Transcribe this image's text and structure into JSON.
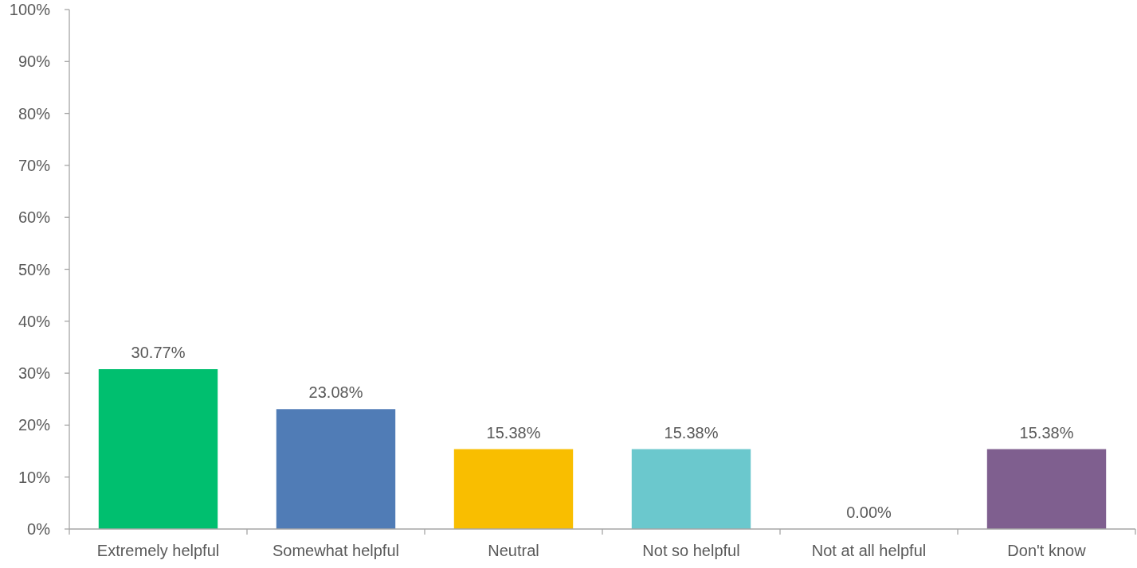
{
  "chart_data": {
    "type": "bar",
    "categories": [
      "Extremely helpful",
      "Somewhat helpful",
      "Neutral",
      "Not so helpful",
      "Not at all helpful",
      "Don't know"
    ],
    "values": [
      30.77,
      23.08,
      15.38,
      15.38,
      0,
      15.38
    ],
    "colors": [
      "#00bf6f",
      "#507cb6",
      "#f9be00",
      "#6bc8cd",
      "#ff8b4f",
      "#7f5f8f"
    ],
    "value_labels": [
      "30.77%",
      "23.08%",
      "15.38%",
      "15.38%",
      "0.00%",
      "15.38%"
    ],
    "ylim": [
      0,
      100
    ],
    "yticks": [
      {
        "value": 0,
        "label": "0%"
      },
      {
        "value": 10,
        "label": "10%"
      },
      {
        "value": 20,
        "label": "20%"
      },
      {
        "value": 30,
        "label": "30%"
      },
      {
        "value": 40,
        "label": "40%"
      },
      {
        "value": 50,
        "label": "50%"
      },
      {
        "value": 60,
        "label": "60%"
      },
      {
        "value": 70,
        "label": "70%"
      },
      {
        "value": 80,
        "label": "80%"
      },
      {
        "value": 90,
        "label": "90%"
      },
      {
        "value": 100,
        "label": "100%"
      }
    ],
    "grid": false
  }
}
